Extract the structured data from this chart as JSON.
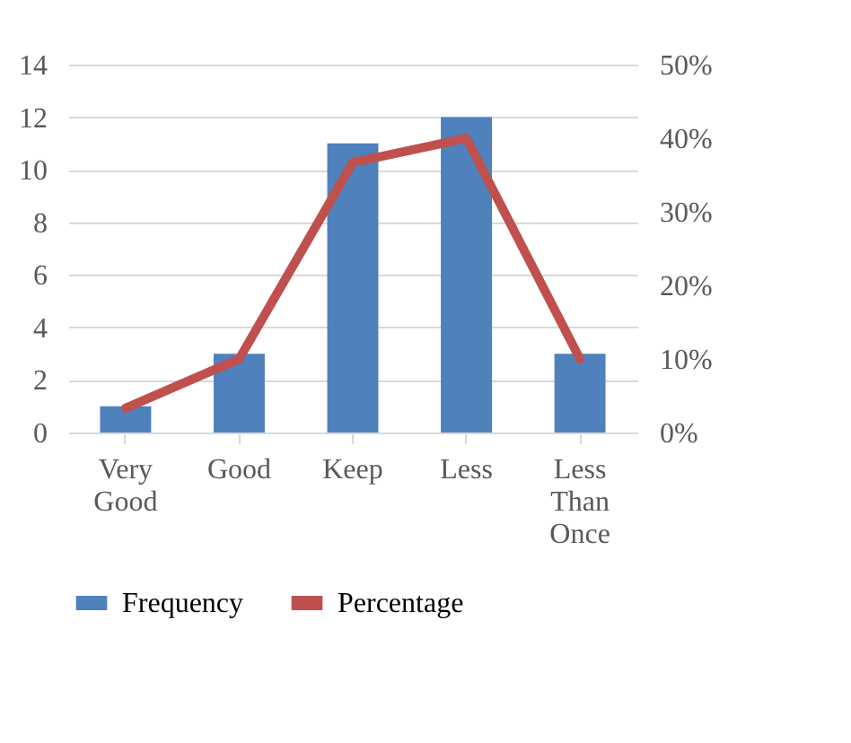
{
  "chart_data": {
    "type": "bar",
    "categories": [
      "Very Good",
      "Good",
      "Keep",
      "Less",
      "Less Than Once"
    ],
    "series": [
      {
        "name": "Frequency",
        "color": "#4f81bd",
        "values": [
          1,
          3,
          11,
          12,
          3
        ]
      },
      {
        "name": "Percentage",
        "type": "line",
        "axis": "y2",
        "color": "#c0504d",
        "values": [
          3.3,
          10,
          36.7,
          40,
          10
        ]
      }
    ],
    "ylim": [
      0,
      14
    ],
    "yticks": [
      0,
      2,
      4,
      6,
      8,
      10,
      12,
      14
    ],
    "y2lim": [
      0,
      50
    ],
    "y2ticks": [
      {
        "value": 0,
        "label": "0%"
      },
      {
        "value": 10,
        "label": "10%"
      },
      {
        "value": 20,
        "label": "20%"
      },
      {
        "value": 30,
        "label": "30%"
      },
      {
        "value": 40,
        "label": "40%"
      },
      {
        "value": 50,
        "label": "50%"
      }
    ],
    "grid": "y",
    "legend": "bottom",
    "marker": "none",
    "line_style": "solid"
  }
}
